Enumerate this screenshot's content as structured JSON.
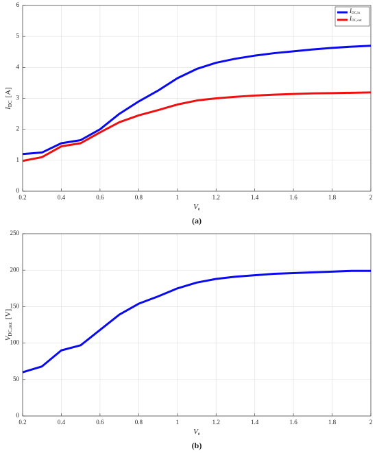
{
  "chart_data": [
    {
      "type": "line",
      "caption": "(a)",
      "xlabel": {
        "base": "V",
        "sub": "e"
      },
      "ylabel": {
        "base": "I",
        "sub": "DC",
        "unit": "[A]"
      },
      "x": [
        0.2,
        0.3,
        0.4,
        0.5,
        0.6,
        0.7,
        0.8,
        0.9,
        1.0,
        1.1,
        1.2,
        1.3,
        1.4,
        1.5,
        1.6,
        1.7,
        1.8,
        1.9,
        2.0
      ],
      "xlim": [
        0.2,
        2
      ],
      "xticks": [
        0.2,
        0.4,
        0.6,
        0.8,
        1,
        1.2,
        1.4,
        1.6,
        1.8,
        2
      ],
      "ylim": [
        0,
        6
      ],
      "yticks": [
        0,
        1,
        2,
        3,
        4,
        5,
        6
      ],
      "grid": true,
      "legend": "top-right",
      "series": [
        {
          "name": {
            "base": "I",
            "sub": "DC,in"
          },
          "color": "#0a0aee",
          "values": [
            1.2,
            1.25,
            1.55,
            1.65,
            2.0,
            2.5,
            2.9,
            3.25,
            3.65,
            3.95,
            4.15,
            4.28,
            4.38,
            4.46,
            4.52,
            4.58,
            4.63,
            4.67,
            4.7
          ]
        },
        {
          "name": {
            "base": "I",
            "sub": "DC,out"
          },
          "color": "#ee1010",
          "values": [
            0.98,
            1.1,
            1.45,
            1.55,
            1.9,
            2.23,
            2.45,
            2.62,
            2.8,
            2.93,
            3.0,
            3.05,
            3.09,
            3.12,
            3.14,
            3.16,
            3.17,
            3.18,
            3.19
          ]
        }
      ]
    },
    {
      "type": "line",
      "caption": "(b)",
      "xlabel": {
        "base": "V",
        "sub": "e"
      },
      "ylabel": {
        "base": "V",
        "sub": "DC,out",
        "unit": "[V]"
      },
      "x": [
        0.2,
        0.3,
        0.4,
        0.5,
        0.6,
        0.7,
        0.8,
        0.9,
        1.0,
        1.1,
        1.2,
        1.3,
        1.4,
        1.5,
        1.6,
        1.7,
        1.8,
        1.9,
        2.0
      ],
      "xlim": [
        0.2,
        2
      ],
      "xticks": [
        0.2,
        0.4,
        0.6,
        0.8,
        1,
        1.2,
        1.4,
        1.6,
        1.8,
        2
      ],
      "ylim": [
        0,
        250
      ],
      "yticks": [
        0,
        50,
        100,
        150,
        200,
        250
      ],
      "grid": true,
      "series": [
        {
          "color": "#0a0aee",
          "values": [
            60,
            68,
            90,
            97,
            118,
            139,
            154,
            164,
            175,
            183,
            188,
            191,
            193,
            195,
            196,
            197,
            198,
            199,
            199
          ]
        }
      ]
    }
  ]
}
